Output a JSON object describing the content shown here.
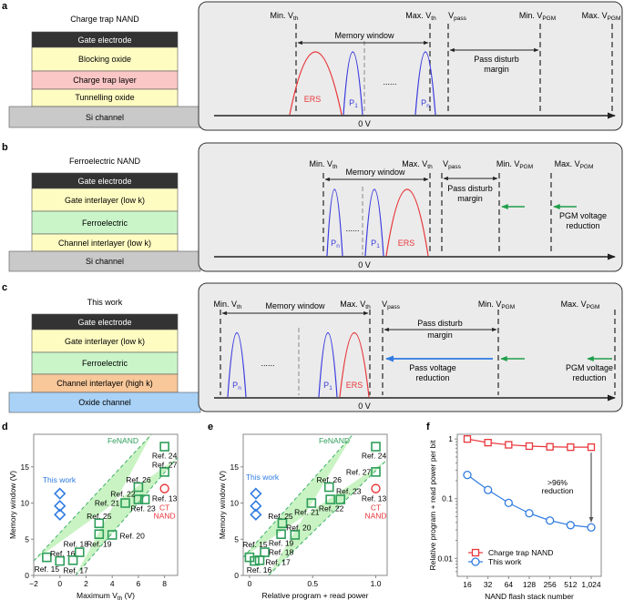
{
  "panels": {
    "a": "a",
    "b": "b",
    "c": "c",
    "d": "d",
    "e": "e",
    "f": "f"
  },
  "colors": {
    "gate": "#333333",
    "oxide": "#fffcc2",
    "trap": "#fbc6c6",
    "ferro": "#caf5c9",
    "high_k": "#f8c79a",
    "si": "#c9c9c9",
    "oxide_channel": "#a9d2f6",
    "ers": "#e8363a",
    "program": "#3a3adf",
    "fenand": "#2e9e5a",
    "this_work": "#2f7be0",
    "ct": "#e8363a",
    "pass_arrow": "#2f7be0",
    "pgm_arrow": "#1f9e4a"
  },
  "stack_a": {
    "title": "Charge trap NAND",
    "layers": [
      "Gate electrode",
      "Blocking oxide",
      "Charge trap layer",
      "Tunnelling oxide",
      "Si channel"
    ]
  },
  "stack_b": {
    "title": "Ferroelectric NAND",
    "layers": [
      "Gate electrode",
      "Gate interlayer (low k)",
      "Ferroelectric",
      "Channel interlayer (low k)",
      "Si channel"
    ]
  },
  "stack_c": {
    "title": "This work",
    "layers": [
      "Gate electrode",
      "Gate interlayer (low k)",
      "Ferroelectric",
      "Channel interlayer (high k)",
      "Oxide channel"
    ]
  },
  "levels": {
    "min_vth": {
      "t": "Min. V",
      "s": "th"
    },
    "max_vth": {
      "t": "Max. V",
      "s": "th"
    },
    "vpass": {
      "t": "V",
      "s": "pass"
    },
    "min_vpgm": {
      "t": "Min. V",
      "s": "PGM"
    },
    "max_vpgm": {
      "t": "Max. V",
      "s": "PGM"
    }
  },
  "labels": {
    "memory_window": "Memory window",
    "pass_disturb_1": "Pass disturb",
    "pass_disturb_2": "margin",
    "pgm_reduction_1": "PGM voltage",
    "pgm_reduction_2": "reduction",
    "pass_reduction_1": "Pass voltage",
    "pass_reduction_2": "reduction",
    "zero_v": "0 V",
    "ers": "ERS",
    "p1": {
      "t": "P",
      "s": "1"
    },
    "pn": {
      "t": "P",
      "s": "n"
    },
    "dots": "......"
  },
  "chart_data": [
    {
      "type": "scatter",
      "xlabel": {
        "t": "Maximum V",
        "s": "th",
        "u": " (V)"
      },
      "ylabel": "Memory window (V)",
      "xlim": [
        -2,
        9
      ],
      "ylim": [
        0,
        19.5
      ],
      "xticks": [
        -2,
        0,
        2,
        4,
        6,
        8
      ],
      "yticks": [
        0,
        5,
        10,
        15
      ],
      "band_label": "FeNAND",
      "this_work": {
        "label": "This work",
        "x": [
          0,
          0,
          0
        ],
        "y": [
          11.3,
          9.6,
          8.4
        ]
      },
      "ct_nand": {
        "ref": "Ref. 13",
        "label": [
          "CT",
          "NAND"
        ],
        "x": 8,
        "y": 12
      },
      "fenand": [
        {
          "ref": "Ref. 15",
          "x": -1,
          "y": 2.5
        },
        {
          "ref": "Ref. 16",
          "x": 0,
          "y": 2
        },
        {
          "ref": "Ref. 17",
          "x": 1,
          "y": 2.1
        },
        {
          "ref": "Ref. 18",
          "x": 1.5,
          "y": 3.2
        },
        {
          "ref": "Ref. 19",
          "x": 3,
          "y": 5.7
        },
        {
          "ref": "Ref. 25",
          "x": 3,
          "y": 7.2
        },
        {
          "ref": "Ref. 20",
          "x": 4,
          "y": 5.6
        },
        {
          "ref": "Ref. 21",
          "x": 5,
          "y": 10
        },
        {
          "ref": "Ref. 22",
          "x": 6,
          "y": 10.5
        },
        {
          "ref": "Ref. 23",
          "x": 6.5,
          "y": 10.5
        },
        {
          "ref": "Ref. 26",
          "x": 6,
          "y": 12.2
        },
        {
          "ref": "Ref. 27",
          "x": 8,
          "y": 14.3
        },
        {
          "ref": "Ref. 24",
          "x": 8,
          "y": 17.8
        }
      ]
    },
    {
      "type": "scatter",
      "xlabel": {
        "t": "Relative program + read power",
        "s": "",
        "u": ""
      },
      "ylabel": "Memory window (V)",
      "xlim": [
        -0.05,
        1.09
      ],
      "ylim": [
        0,
        19.5
      ],
      "xticks": [
        0,
        0.5,
        1.0
      ],
      "xticklabels": [
        "0",
        "0.5",
        "1.0"
      ],
      "yticks": [
        0,
        5,
        10,
        15
      ],
      "band_label": "FeNAND",
      "this_work": {
        "label": "This work",
        "x": [
          0.05,
          0.05,
          0.05
        ],
        "y": [
          11.3,
          9.6,
          8.4
        ]
      },
      "ct_nand": {
        "ref": "Ref. 13",
        "label": [
          "CT",
          "NAND"
        ],
        "x": 1.0,
        "y": 12
      },
      "fenand": [
        {
          "ref": "Ref. 15",
          "x": 0,
          "y": 2.5
        },
        {
          "ref": "Ref. 16",
          "x": 0.04,
          "y": 2
        },
        {
          "ref": "Ref. 17",
          "x": 0.08,
          "y": 2.1
        },
        {
          "ref": "Ref. 18",
          "x": 0.12,
          "y": 3.2
        },
        {
          "ref": "Ref. 19",
          "x": 0.25,
          "y": 5.7
        },
        {
          "ref": "Ref. 25",
          "x": 0.26,
          "y": 7.2
        },
        {
          "ref": "Ref. 20",
          "x": 0.36,
          "y": 5.6
        },
        {
          "ref": "Ref. 21",
          "x": 0.49,
          "y": 10
        },
        {
          "ref": "Ref. 22",
          "x": 0.64,
          "y": 10.5
        },
        {
          "ref": "Ref. 23",
          "x": 0.72,
          "y": 10.5
        },
        {
          "ref": "Ref. 26",
          "x": 0.63,
          "y": 12.2
        },
        {
          "ref": "Ref. 27",
          "x": 1.0,
          "y": 14.3
        },
        {
          "ref": "Ref. 24",
          "x": 1.0,
          "y": 17.8
        }
      ]
    },
    {
      "type": "line",
      "yscale": "log",
      "xlabel": "NAND flash stack number",
      "ylabel": "Relative program + read power per bit",
      "categories": [
        "16",
        "32",
        "64",
        "128",
        "256",
        "512",
        "1,024"
      ],
      "ylim": [
        0.005,
        1.2
      ],
      "yticks": [
        1,
        0.1,
        0.01
      ],
      "yticklabels": [
        "1",
        "0.1",
        "0.01"
      ],
      "legend": "bottom-left",
      "annotation": [
        ">96%",
        "reduction"
      ],
      "series": [
        {
          "name": "Charge trap NAND",
          "marker": "square",
          "color": "#e8363a",
          "values": [
            1.0,
            0.87,
            0.8,
            0.76,
            0.74,
            0.73,
            0.73
          ]
        },
        {
          "name": "This work",
          "marker": "circle",
          "color": "#2f7be0",
          "values": [
            0.25,
            0.14,
            0.085,
            0.057,
            0.043,
            0.036,
            0.033
          ]
        }
      ]
    }
  ]
}
